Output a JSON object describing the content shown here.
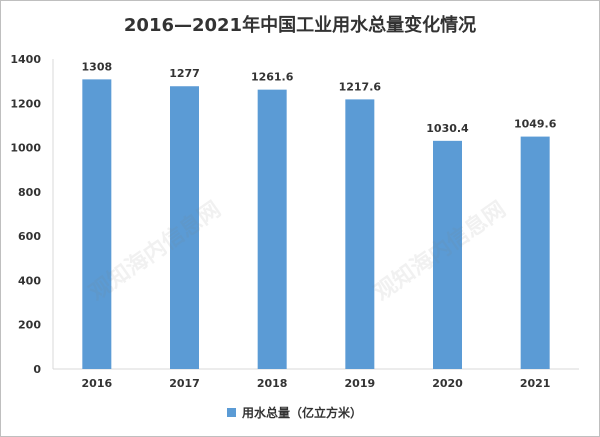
{
  "chart_data": {
    "type": "bar",
    "title": "2016—2021年中国工业用水总量变化情况",
    "categories": [
      "2016",
      "2017",
      "2018",
      "2019",
      "2020",
      "2021"
    ],
    "series": [
      {
        "name": "用水总量（亿立方米）",
        "values": [
          1308,
          1277,
          1261.6,
          1217.6,
          1030.4,
          1049.6
        ]
      }
    ],
    "data_labels": [
      "1308",
      "1277",
      "1261.6",
      "1217.6",
      "1030.4",
      "1049.6"
    ],
    "ylim": [
      0,
      1400
    ],
    "yticks": [
      0,
      200,
      400,
      600,
      800,
      1000,
      1200,
      1400
    ],
    "xlabel": "",
    "ylabel": "",
    "grid": false,
    "legend_position": "bottom",
    "bar_color": "#5b9bd5"
  },
  "watermark_text": "观知海内信息网"
}
